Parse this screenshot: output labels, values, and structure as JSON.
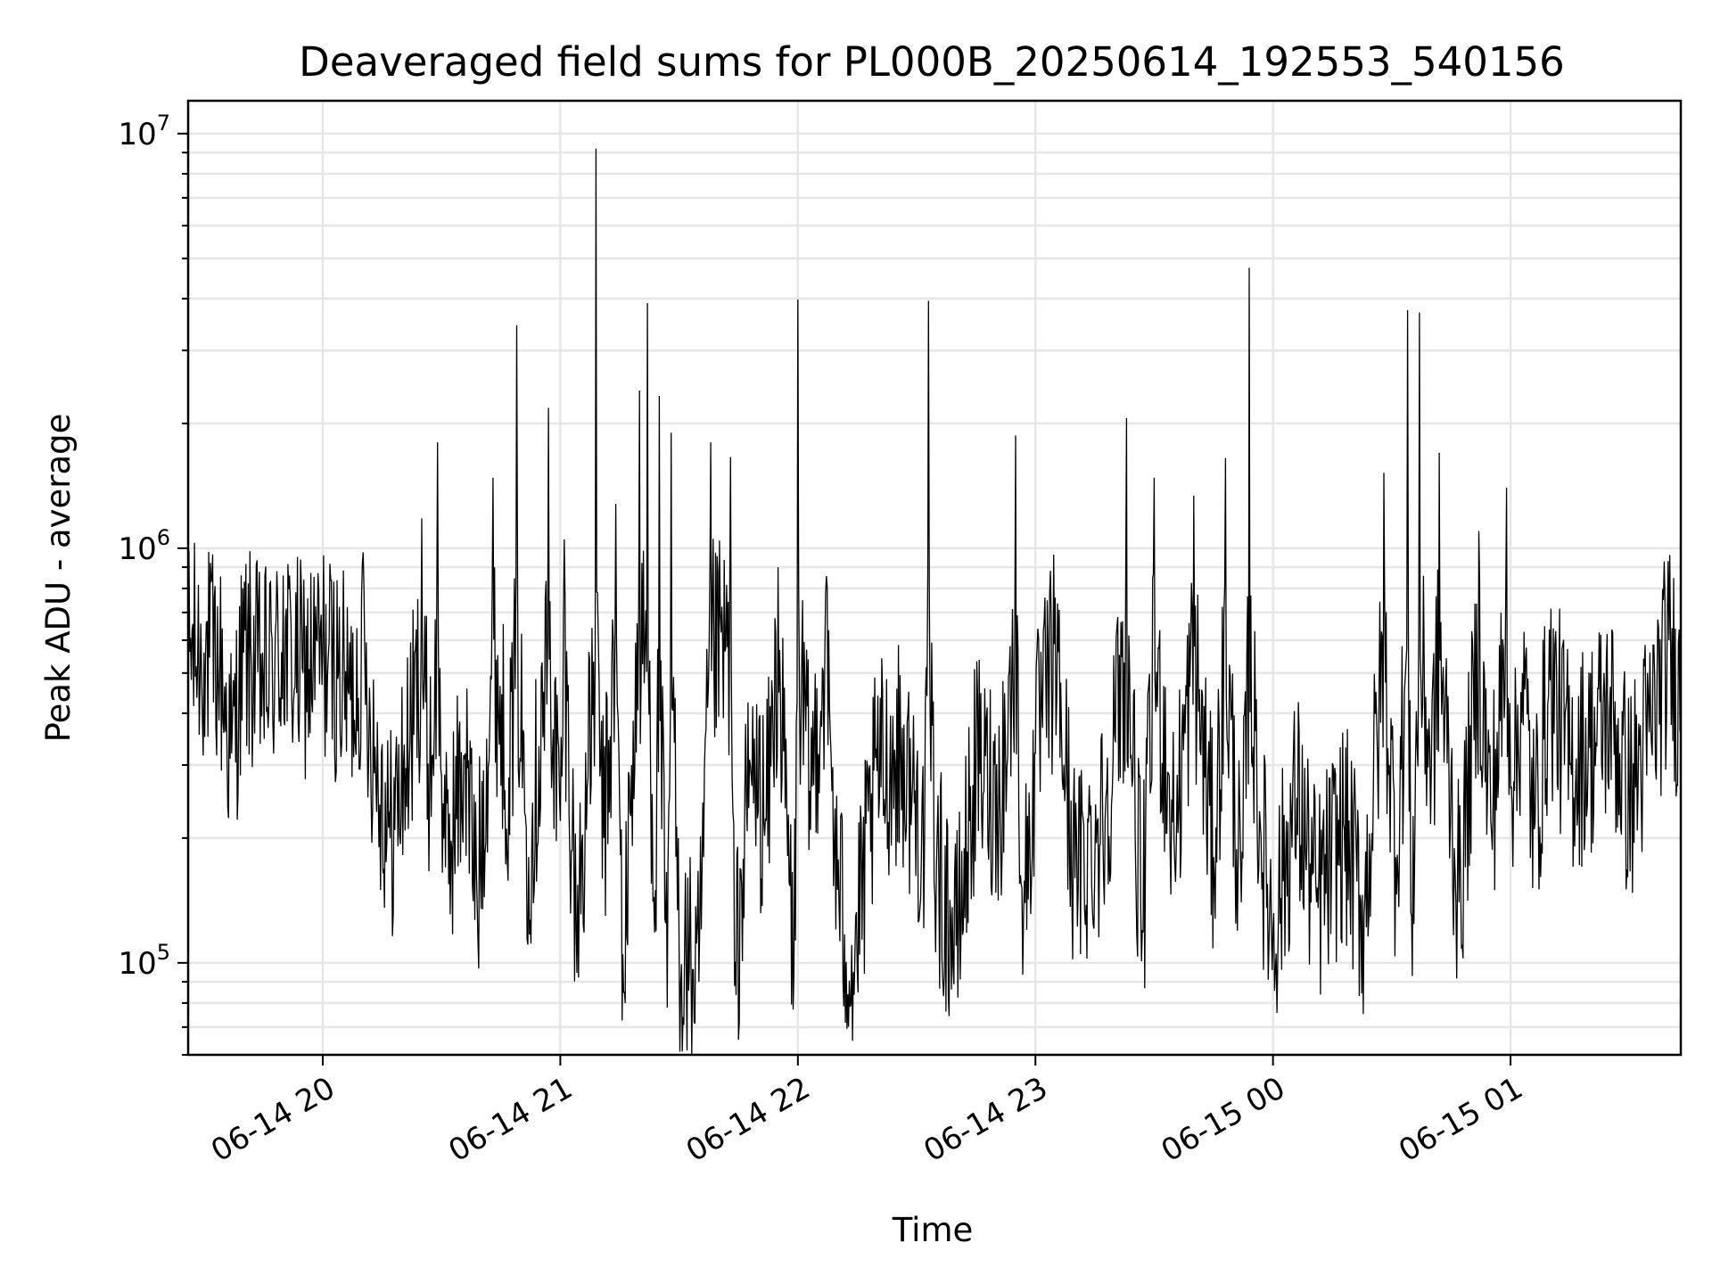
{
  "chart_data": {
    "type": "line",
    "title": "Deaveraged field sums for PL000B_20250614_192553_540156",
    "xlabel": "Time",
    "ylabel": "Peak ADU - average",
    "yscale": "log",
    "ylim": [
      60000,
      12000000
    ],
    "xlim": [
      "2025-06-14 19:26",
      "2025-06-15 01:43"
    ],
    "x_ticks": [
      "06-14 20",
      "06-14 21",
      "06-14 22",
      "06-14 23",
      "06-15 00",
      "06-15 01"
    ],
    "y_ticks": [
      {
        "base": "10",
        "exp": "5"
      },
      {
        "base": "10",
        "exp": "6"
      },
      {
        "base": "10",
        "exp": "7"
      }
    ],
    "grid": true,
    "series": [
      {
        "color": "#000000",
        "points": [
          [
            "2025-06-14 19:26",
            650000
          ],
          [
            "2025-06-14 19:30",
            560000
          ],
          [
            "2025-06-14 19:34",
            520000
          ],
          [
            "2025-06-14 19:37",
            320000
          ],
          [
            "2025-06-14 19:40",
            560000
          ],
          [
            "2025-06-14 19:45",
            480000
          ],
          [
            "2025-06-14 19:50",
            860000
          ],
          [
            "2025-06-14 19:55",
            500000
          ],
          [
            "2025-06-14 20:00",
            560000
          ],
          [
            "2025-06-14 20:04",
            500000
          ],
          [
            "2025-06-14 20:07",
            430000
          ],
          [
            "2025-06-14 20:10",
            920000
          ],
          [
            "2025-06-14 20:12",
            380000
          ],
          [
            "2025-06-14 20:17",
            200000
          ],
          [
            "2025-06-14 20:22",
            340000
          ],
          [
            "2025-06-14 20:25",
            1180000
          ],
          [
            "2025-06-14 20:27",
            280000
          ],
          [
            "2025-06-14 20:29",
            1800000
          ],
          [
            "2025-06-14 20:31",
            170000
          ],
          [
            "2025-06-14 20:36",
            320000
          ],
          [
            "2025-06-14 20:39",
            140000
          ],
          [
            "2025-06-14 20:43",
            1480000
          ],
          [
            "2025-06-14 20:47",
            280000
          ],
          [
            "2025-06-14 20:49",
            3450000
          ],
          [
            "2025-06-14 20:52",
            180000
          ],
          [
            "2025-06-14 20:57",
            2180000
          ],
          [
            "2025-06-14 21:00",
            220000
          ],
          [
            "2025-06-14 21:01",
            1050000
          ],
          [
            "2025-06-14 21:04",
            120000
          ],
          [
            "2025-06-14 21:07",
            280000
          ],
          [
            "2025-06-14 21:09",
            9200000
          ],
          [
            "2025-06-14 21:11",
            200000
          ],
          [
            "2025-06-14 21:14",
            1280000
          ],
          [
            "2025-06-14 21:16",
            85000
          ],
          [
            "2025-06-14 21:18",
            300000
          ],
          [
            "2025-06-14 21:20",
            2400000
          ],
          [
            "2025-06-14 21:22",
            3900000
          ],
          [
            "2025-06-14 21:24",
            150000
          ],
          [
            "2025-06-14 21:25",
            2330000
          ],
          [
            "2025-06-14 21:27",
            78000
          ],
          [
            "2025-06-14 21:28",
            1900000
          ],
          [
            "2025-06-14 21:30",
            110000
          ],
          [
            "2025-06-14 21:35",
            90000
          ],
          [
            "2025-06-14 21:38",
            1800000
          ],
          [
            "2025-06-14 21:43",
            1660000
          ],
          [
            "2025-06-14 21:44",
            88000
          ],
          [
            "2025-06-14 21:48",
            300000
          ],
          [
            "2025-06-14 21:52",
            220000
          ],
          [
            "2025-06-14 21:55",
            900000
          ],
          [
            "2025-06-14 21:59",
            95000
          ],
          [
            "2025-06-14 22:00",
            3980000
          ],
          [
            "2025-06-14 22:03",
            260000
          ],
          [
            "2025-06-14 22:07",
            780000
          ],
          [
            "2025-06-14 22:10",
            150000
          ],
          [
            "2025-06-14 22:14",
            95000
          ],
          [
            "2025-06-14 22:20",
            290000
          ],
          [
            "2025-06-14 22:26",
            320000
          ],
          [
            "2025-06-14 22:32",
            200000
          ],
          [
            "2025-06-14 22:33",
            3950000
          ],
          [
            "2025-06-14 22:35",
            170000
          ],
          [
            "2025-06-14 22:40",
            110000
          ],
          [
            "2025-06-14 22:45",
            300000
          ],
          [
            "2025-06-14 22:51",
            250000
          ],
          [
            "2025-06-14 22:55",
            1870000
          ],
          [
            "2025-06-14 22:57",
            130000
          ],
          [
            "2025-06-14 23:00",
            320000
          ],
          [
            "2025-06-14 23:05",
            760000
          ],
          [
            "2025-06-14 23:10",
            160000
          ],
          [
            "2025-06-14 23:17",
            220000
          ],
          [
            "2025-06-14 23:23",
            2060000
          ],
          [
            "2025-06-14 23:27",
            120000
          ],
          [
            "2025-06-14 23:30",
            1480000
          ],
          [
            "2025-06-14 23:35",
            200000
          ],
          [
            "2025-06-14 23:40",
            1340000
          ],
          [
            "2025-06-14 23:45",
            180000
          ],
          [
            "2025-06-14 23:48",
            1650000
          ],
          [
            "2025-06-14 23:52",
            140000
          ],
          [
            "2025-06-14 23:54",
            4750000
          ],
          [
            "2025-06-14 23:57",
            200000
          ],
          [
            "2025-06-15 00:00",
            120000
          ],
          [
            "2025-06-15 00:06",
            250000
          ],
          [
            "2025-06-15 00:11",
            140000
          ],
          [
            "2025-06-15 00:18",
            210000
          ],
          [
            "2025-06-15 00:23",
            130000
          ],
          [
            "2025-06-15 00:28",
            1520000
          ],
          [
            "2025-06-15 00:31",
            180000
          ],
          [
            "2025-06-15 00:34",
            3750000
          ],
          [
            "2025-06-15 00:35",
            130000
          ],
          [
            "2025-06-15 00:37",
            3700000
          ],
          [
            "2025-06-15 00:40",
            300000
          ],
          [
            "2025-06-15 00:42",
            1700000
          ],
          [
            "2025-06-15 00:47",
            140000
          ],
          [
            "2025-06-15 00:52",
            1100000
          ],
          [
            "2025-06-15 00:55",
            220000
          ],
          [
            "2025-06-15 00:59",
            1400000
          ],
          [
            "2025-06-15 01:01",
            260000
          ],
          [
            "2025-06-15 01:03",
            500000
          ],
          [
            "2025-06-15 01:06",
            210000
          ],
          [
            "2025-06-15 01:10",
            480000
          ],
          [
            "2025-06-15 01:15",
            300000
          ],
          [
            "2025-06-15 01:20",
            330000
          ],
          [
            "2025-06-15 01:25",
            410000
          ],
          [
            "2025-06-15 01:30",
            250000
          ],
          [
            "2025-06-15 01:35",
            360000
          ],
          [
            "2025-06-15 01:40",
            600000
          ],
          [
            "2025-06-15 01:43",
            420000
          ]
        ]
      }
    ]
  }
}
